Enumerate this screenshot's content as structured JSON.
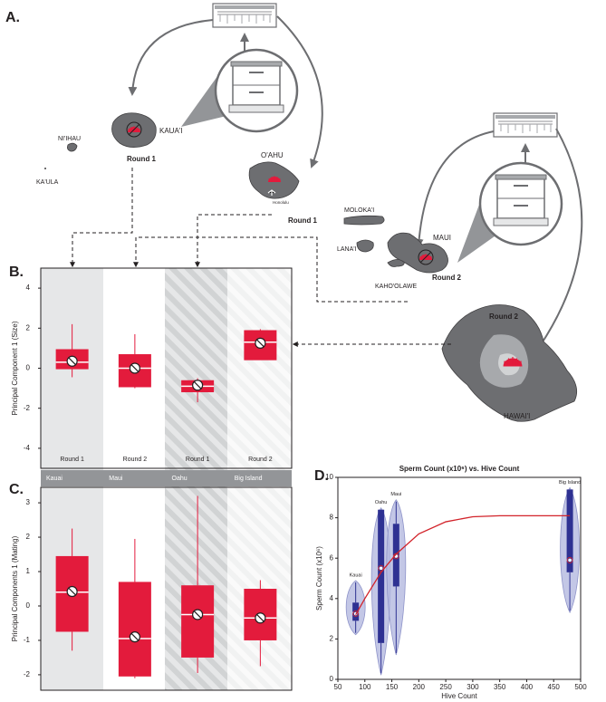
{
  "map": {
    "panel": "A.",
    "labels": [
      "NI'IHAU",
      "KA'ULA",
      "KAUA'I",
      "Round 1",
      "O'AHU",
      "Honolulu",
      "Round 1",
      "MOLOKA'I",
      "LANA'I",
      "MAUI",
      "Round 2",
      "KAHO'OLAWE",
      "Round 2",
      "HAWAI'I"
    ]
  },
  "chart_data": [
    {
      "type": "box",
      "panel": "B.",
      "ylabel": "Principal Component 1 (Size)",
      "categories": [
        "Round 1",
        "Round 2",
        "Round 1",
        "Round 2"
      ],
      "groups": [
        "Kauai",
        "Maui",
        "Oahu",
        "Big Island"
      ],
      "color": "#e31b3c",
      "ylim": [
        -5,
        5
      ],
      "yticks": [
        4,
        2,
        0,
        -2,
        -4
      ],
      "boxes": [
        {
          "min": -0.45,
          "q1": -0.05,
          "median": 0.3,
          "q3": 0.95,
          "max": 2.2,
          "mean": 0.35
        },
        {
          "min": -1.0,
          "q1": -0.95,
          "median": 0.0,
          "q3": 0.7,
          "max": 1.7,
          "mean": 0.0
        },
        {
          "min": -1.7,
          "q1": -1.2,
          "median": -0.9,
          "q3": -0.6,
          "max": -0.5,
          "mean": -0.85
        },
        {
          "min": 0.4,
          "q1": 0.4,
          "median": 1.3,
          "q3": 1.9,
          "max": 1.95,
          "mean": 1.25
        }
      ]
    },
    {
      "type": "box",
      "panel": "C.",
      "ylabel": "Principal Components 1 (Mating)",
      "color": "#e31b3c",
      "ylim": [
        -2.45,
        3.45
      ],
      "yticks": [
        3,
        2,
        1,
        0,
        -1,
        -2
      ],
      "boxes": [
        {
          "min": -1.3,
          "q1": -0.75,
          "median": 0.4,
          "q3": 1.45,
          "max": 2.25,
          "mean": 0.42
        },
        {
          "min": -2.1,
          "q1": -2.05,
          "median": -0.95,
          "q3": 0.7,
          "max": 1.95,
          "mean": -0.9
        },
        {
          "min": -1.95,
          "q1": -1.5,
          "median": -0.25,
          "q3": 0.6,
          "max": 3.2,
          "mean": -0.25
        },
        {
          "min": -1.75,
          "q1": -1.0,
          "median": -0.35,
          "q3": 0.5,
          "max": 0.75,
          "mean": -0.35
        }
      ]
    },
    {
      "type": "violin",
      "panel": "D.",
      "title": "Sperm Count (x10⁶) vs. Hive Count",
      "xlabel": "Hive Count",
      "ylabel": "Sperm Count (x10⁶)",
      "categories": [
        "Kauai",
        "Oahu",
        "Maui",
        "Big Island"
      ],
      "x": [
        83,
        130,
        158,
        480
      ],
      "color": "#2e3192",
      "line_color": "#d2232a",
      "xlim": [
        50,
        500
      ],
      "xticks": [
        50,
        100,
        150,
        200,
        250,
        300,
        350,
        400,
        450,
        500
      ],
      "ylim": [
        0,
        10
      ],
      "yticks": [
        0,
        2,
        4,
        6,
        8,
        10
      ],
      "boxes": [
        {
          "min": 2.3,
          "q1": 2.9,
          "median": 3.3,
          "q3": 3.8,
          "max": 4.8,
          "mean": 3.25
        },
        {
          "min": 0.3,
          "q1": 1.8,
          "median": 5.5,
          "q3": 8.4,
          "max": 8.4,
          "mean": 5.5
        },
        {
          "min": 1.3,
          "q1": 4.6,
          "median": 6.1,
          "q3": 7.7,
          "max": 8.8,
          "mean": 6.1
        },
        {
          "min": 3.4,
          "q1": 5.3,
          "median": 5.9,
          "q3": 9.4,
          "max": 9.4,
          "mean": 5.9
        }
      ],
      "fit": {
        "x": [
          83,
          100,
          130,
          158,
          200,
          250,
          300,
          350,
          400,
          450,
          480
        ],
        "y": [
          3.2,
          4.0,
          5.3,
          6.2,
          7.2,
          7.8,
          8.05,
          8.1,
          8.1,
          8.1,
          8.1
        ]
      }
    }
  ]
}
